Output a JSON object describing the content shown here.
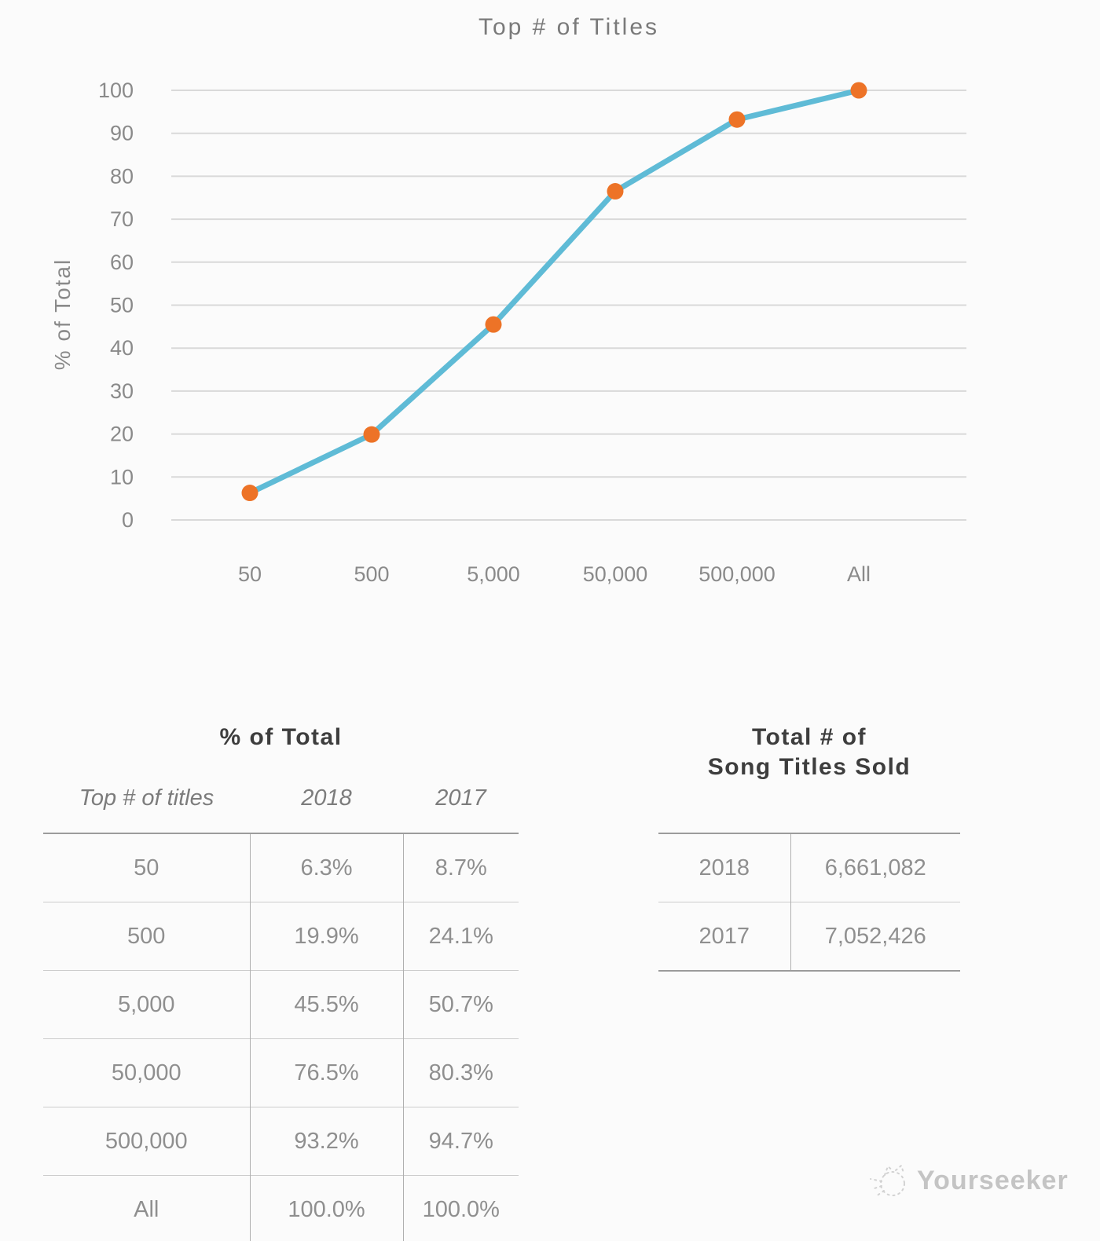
{
  "chart_data": {
    "type": "line",
    "title": "Top # of Titles",
    "xlabel": "",
    "ylabel": "% of Total",
    "categories": [
      "50",
      "500",
      "5,000",
      "50,000",
      "500,000",
      "All"
    ],
    "series": [
      {
        "name": "2018",
        "values": [
          6.3,
          19.9,
          45.5,
          76.5,
          93.2,
          100.0
        ]
      }
    ],
    "ylim": [
      0,
      100
    ],
    "yticks": [
      0,
      10,
      20,
      30,
      40,
      50,
      60,
      70,
      80,
      90,
      100
    ],
    "grid": true,
    "legend": "none",
    "line_color": "#5fbbd6",
    "marker_color": "#ed7327",
    "gridline_color": "#d9d9d9",
    "axis_text_color": "#8a8a8a"
  },
  "percent_table": {
    "title": "% of Total",
    "columns": [
      "Top # of titles",
      "2018",
      "2017"
    ],
    "rows": [
      [
        "50",
        "6.3%",
        "8.7%"
      ],
      [
        "500",
        "19.9%",
        "24.1%"
      ],
      [
        "5,000",
        "45.5%",
        "50.7%"
      ],
      [
        "50,000",
        "76.5%",
        "80.3%"
      ],
      [
        "500,000",
        "93.2%",
        "94.7%"
      ],
      [
        "All",
        "100.0%",
        "100.0%"
      ]
    ]
  },
  "totals_table": {
    "title_line1": "Total # of",
    "title_line2": "Song Titles Sold",
    "rows": [
      [
        "2018",
        "6,661,082"
      ],
      [
        "2017",
        "7,052,426"
      ]
    ]
  },
  "logo": {
    "text": "Yourseeker"
  }
}
